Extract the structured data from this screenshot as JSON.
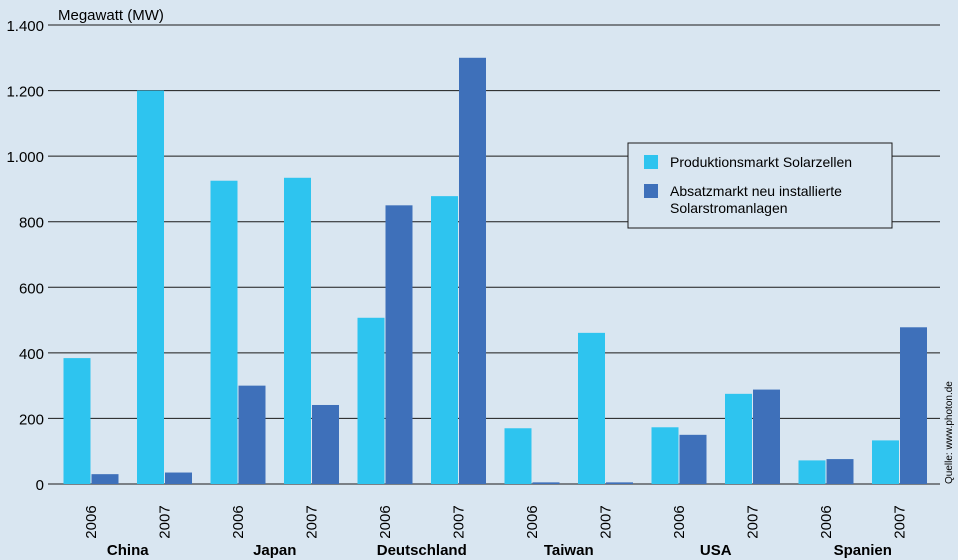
{
  "chart_data": {
    "type": "bar",
    "ylabel": "Megawatt (MW)",
    "ylim": [
      0,
      1400
    ],
    "yticks": [
      0,
      200,
      400,
      600,
      800,
      1000,
      1200,
      1400
    ],
    "ytick_labels": [
      "0",
      "200",
      "400",
      "600",
      "800",
      "1.000",
      "1.200",
      "1.400"
    ],
    "groups": [
      {
        "country": "China",
        "years": [
          "2006",
          "2007"
        ]
      },
      {
        "country": "Japan",
        "years": [
          "2006",
          "2007"
        ]
      },
      {
        "country": "Deutschland",
        "years": [
          "2006",
          "2007"
        ]
      },
      {
        "country": "Taiwan",
        "years": [
          "2006",
          "2007"
        ]
      },
      {
        "country": "USA",
        "years": [
          "2006",
          "2007"
        ]
      },
      {
        "country": "Spanien",
        "years": [
          "2006",
          "2007"
        ]
      }
    ],
    "series": [
      {
        "name": "Produktionsmarkt Solarzellen",
        "color": "#2ec4ef",
        "values": [
          384,
          1200,
          925,
          934,
          507,
          878,
          170,
          461,
          173,
          275,
          72,
          133
        ]
      },
      {
        "name": "Absatzmarkt neu installierte Solarstromanlagen",
        "color": "#3e70ba",
        "values": [
          30,
          35,
          300,
          241,
          850,
          1300,
          5,
          5,
          150,
          288,
          76,
          478
        ]
      }
    ],
    "legend": {
      "position": "top-right",
      "entries": [
        [
          "Produktionsmarkt Solarzellen"
        ],
        [
          "Absatzmarkt neu installierte",
          "Solarstromanlagen"
        ]
      ]
    },
    "grid": true,
    "source": "Quelle: www.photon.de"
  }
}
